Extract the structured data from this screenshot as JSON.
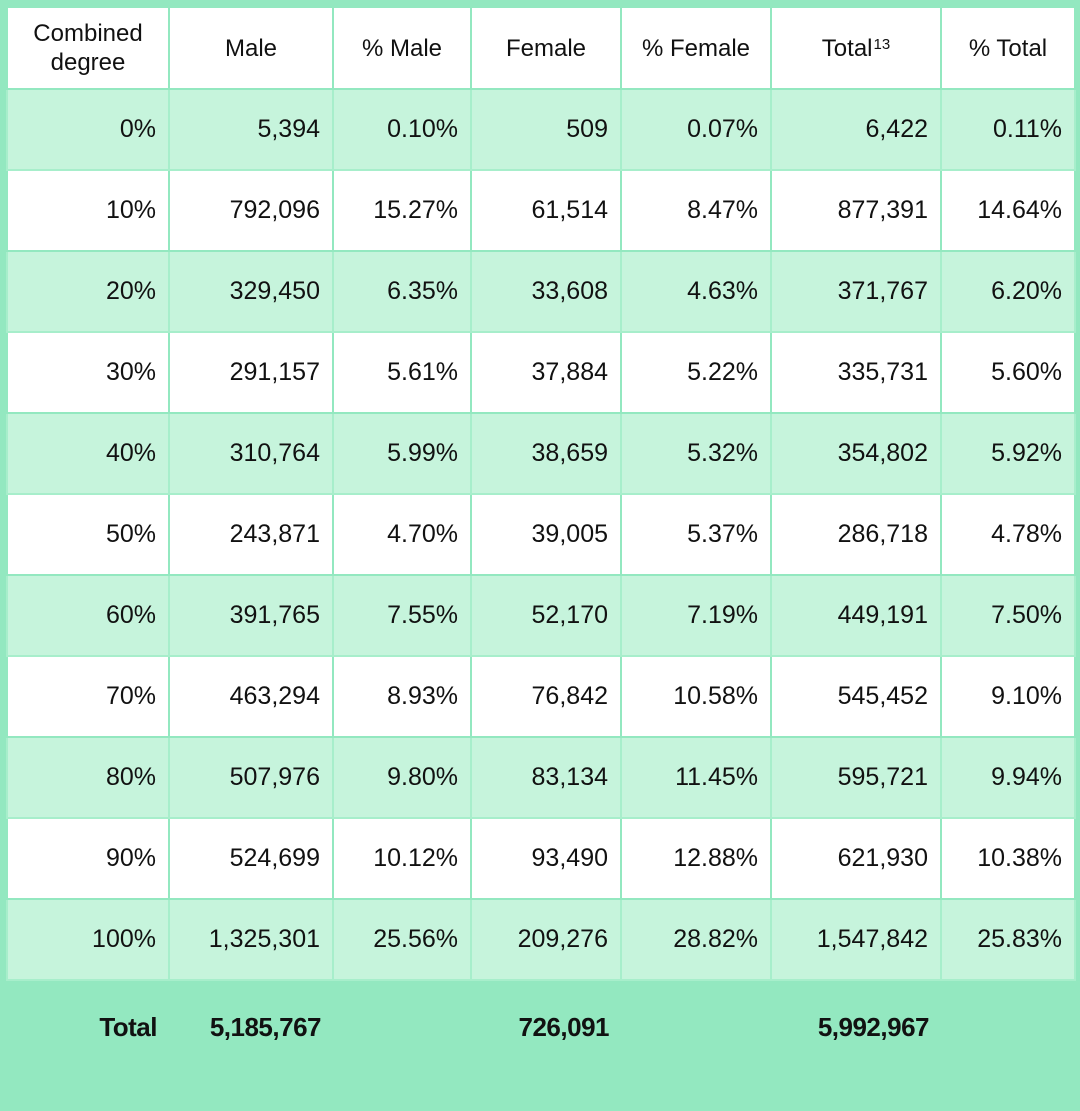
{
  "table": {
    "headers": [
      {
        "text": "Combined degree",
        "sup": ""
      },
      {
        "text": "Male",
        "sup": ""
      },
      {
        "text": "% Male",
        "sup": ""
      },
      {
        "text": "Female",
        "sup": ""
      },
      {
        "text": "% Female",
        "sup": ""
      },
      {
        "text": "Total",
        "sup": "13"
      },
      {
        "text": "% Total",
        "sup": ""
      }
    ],
    "rows": [
      [
        "0%",
        "5,394",
        "0.10%",
        "509",
        "0.07%",
        "6,422",
        "0.11%"
      ],
      [
        "10%",
        "792,096",
        "15.27%",
        "61,514",
        "8.47%",
        "877,391",
        "14.64%"
      ],
      [
        "20%",
        "329,450",
        "6.35%",
        "33,608",
        "4.63%",
        "371,767",
        "6.20%"
      ],
      [
        "30%",
        "291,157",
        "5.61%",
        "37,884",
        "5.22%",
        "335,731",
        "5.60%"
      ],
      [
        "40%",
        "310,764",
        "5.99%",
        "38,659",
        "5.32%",
        "354,802",
        "5.92%"
      ],
      [
        "50%",
        "243,871",
        "4.70%",
        "39,005",
        "5.37%",
        "286,718",
        "4.78%"
      ],
      [
        "60%",
        "391,765",
        "7.55%",
        "52,170",
        "7.19%",
        "449,191",
        "7.50%"
      ],
      [
        "70%",
        "463,294",
        "8.93%",
        "76,842",
        "10.58%",
        "545,452",
        "9.10%"
      ],
      [
        "80%",
        "507,976",
        "9.80%",
        "83,134",
        "11.45%",
        "595,721",
        "9.94%"
      ],
      [
        "90%",
        "524,699",
        "10.12%",
        "93,490",
        "12.88%",
        "621,930",
        "10.38%"
      ],
      [
        "100%",
        "1,325,301",
        "25.56%",
        "209,276",
        "28.82%",
        "1,547,842",
        "25.83%"
      ]
    ],
    "total_row": [
      "Total",
      "5,185,767",
      "",
      "726,091",
      "",
      "5,992,967",
      ""
    ]
  },
  "colors": {
    "frame_green": "#93e8c0",
    "shaded_row": "#c6f4dc",
    "plain_row": "#ffffff"
  }
}
